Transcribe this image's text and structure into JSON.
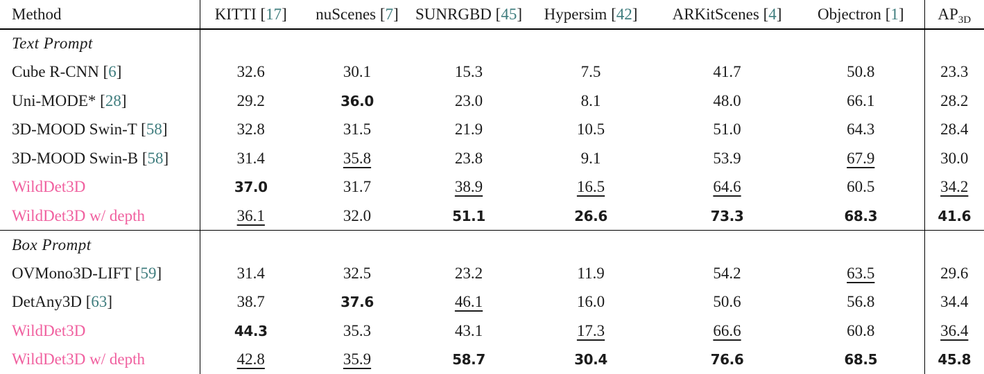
{
  "colors": {
    "accent_pink": "#f0609f",
    "citation_teal": "#3e7c7d",
    "rule_black": "#000000"
  },
  "header": {
    "method_label": "Method",
    "dataset_columns": [
      {
        "name": "KITTI",
        "cite": "[17]"
      },
      {
        "name": "nuScenes",
        "cite": "[7]"
      },
      {
        "name": "SUNRGBD",
        "cite": "[45]"
      },
      {
        "name": "Hypersim",
        "cite": "[42]"
      },
      {
        "name": "ARKitScenes",
        "cite": "[4]"
      },
      {
        "name": "Objectron",
        "cite": "[1]"
      }
    ],
    "ap_label": "AP",
    "ap_subscript": "3D"
  },
  "sections": [
    {
      "title": "Text Prompt",
      "rows": [
        {
          "method": "Cube R-CNN",
          "cite": "[6]",
          "pink": false,
          "cells": [
            {
              "v": "32.6",
              "s": "p"
            },
            {
              "v": "30.1",
              "s": "p"
            },
            {
              "v": "15.3",
              "s": "p"
            },
            {
              "v": "7.5",
              "s": "p"
            },
            {
              "v": "41.7",
              "s": "p"
            },
            {
              "v": "50.8",
              "s": "p"
            },
            {
              "v": "23.3",
              "s": "p"
            }
          ]
        },
        {
          "method": "Uni-MODE*",
          "cite": "[28]",
          "pink": false,
          "cells": [
            {
              "v": "29.2",
              "s": "p"
            },
            {
              "v": "36.0",
              "s": "b"
            },
            {
              "v": "23.0",
              "s": "p"
            },
            {
              "v": "8.1",
              "s": "p"
            },
            {
              "v": "48.0",
              "s": "p"
            },
            {
              "v": "66.1",
              "s": "p"
            },
            {
              "v": "28.2",
              "s": "p"
            }
          ]
        },
        {
          "method": "3D-MOOD Swin-T",
          "cite": "[58]",
          "pink": false,
          "cells": [
            {
              "v": "32.8",
              "s": "p"
            },
            {
              "v": "31.5",
              "s": "p"
            },
            {
              "v": "21.9",
              "s": "p"
            },
            {
              "v": "10.5",
              "s": "p"
            },
            {
              "v": "51.0",
              "s": "p"
            },
            {
              "v": "64.3",
              "s": "p"
            },
            {
              "v": "28.4",
              "s": "p"
            }
          ]
        },
        {
          "method": "3D-MOOD Swin-B",
          "cite": "[58]",
          "pink": false,
          "cells": [
            {
              "v": "31.4",
              "s": "p"
            },
            {
              "v": "35.8",
              "s": "u"
            },
            {
              "v": "23.8",
              "s": "p"
            },
            {
              "v": "9.1",
              "s": "p"
            },
            {
              "v": "53.9",
              "s": "p"
            },
            {
              "v": "67.9",
              "s": "u"
            },
            {
              "v": "30.0",
              "s": "p"
            }
          ]
        },
        {
          "method": "WildDet3D",
          "cite": "",
          "pink": true,
          "cells": [
            {
              "v": "37.0",
              "s": "b"
            },
            {
              "v": "31.7",
              "s": "p"
            },
            {
              "v": "38.9",
              "s": "u"
            },
            {
              "v": "16.5",
              "s": "u"
            },
            {
              "v": "64.6",
              "s": "u"
            },
            {
              "v": "60.5",
              "s": "p"
            },
            {
              "v": "34.2",
              "s": "u"
            }
          ]
        },
        {
          "method": "WildDet3D w/ depth",
          "cite": "",
          "pink": true,
          "cells": [
            {
              "v": "36.1",
              "s": "u"
            },
            {
              "v": "32.0",
              "s": "p"
            },
            {
              "v": "51.1",
              "s": "b"
            },
            {
              "v": "26.6",
              "s": "b"
            },
            {
              "v": "73.3",
              "s": "b"
            },
            {
              "v": "68.3",
              "s": "b"
            },
            {
              "v": "41.6",
              "s": "b"
            }
          ]
        }
      ]
    },
    {
      "title": "Box Prompt",
      "rows": [
        {
          "method": "OVMono3D-LIFT",
          "cite": "[59]",
          "pink": false,
          "cells": [
            {
              "v": "31.4",
              "s": "p"
            },
            {
              "v": "32.5",
              "s": "p"
            },
            {
              "v": "23.2",
              "s": "p"
            },
            {
              "v": "11.9",
              "s": "p"
            },
            {
              "v": "54.2",
              "s": "p"
            },
            {
              "v": "63.5",
              "s": "u"
            },
            {
              "v": "29.6",
              "s": "p"
            }
          ]
        },
        {
          "method": "DetAny3D",
          "cite": "[63]",
          "pink": false,
          "cells": [
            {
              "v": "38.7",
              "s": "p"
            },
            {
              "v": "37.6",
              "s": "b"
            },
            {
              "v": "46.1",
              "s": "u"
            },
            {
              "v": "16.0",
              "s": "p"
            },
            {
              "v": "50.6",
              "s": "p"
            },
            {
              "v": "56.8",
              "s": "p"
            },
            {
              "v": "34.4",
              "s": "p"
            }
          ]
        },
        {
          "method": "WildDet3D",
          "cite": "",
          "pink": true,
          "cells": [
            {
              "v": "44.3",
              "s": "b"
            },
            {
              "v": "35.3",
              "s": "p"
            },
            {
              "v": "43.1",
              "s": "p"
            },
            {
              "v": "17.3",
              "s": "u"
            },
            {
              "v": "66.6",
              "s": "u"
            },
            {
              "v": "60.8",
              "s": "p"
            },
            {
              "v": "36.4",
              "s": "u"
            }
          ]
        },
        {
          "method": "WildDet3D w/ depth",
          "cite": "",
          "pink": true,
          "cells": [
            {
              "v": "42.8",
              "s": "u"
            },
            {
              "v": "35.9",
              "s": "u"
            },
            {
              "v": "58.7",
              "s": "b"
            },
            {
              "v": "30.4",
              "s": "b"
            },
            {
              "v": "76.6",
              "s": "b"
            },
            {
              "v": "68.5",
              "s": "b"
            },
            {
              "v": "45.8",
              "s": "b"
            }
          ]
        }
      ]
    }
  ]
}
